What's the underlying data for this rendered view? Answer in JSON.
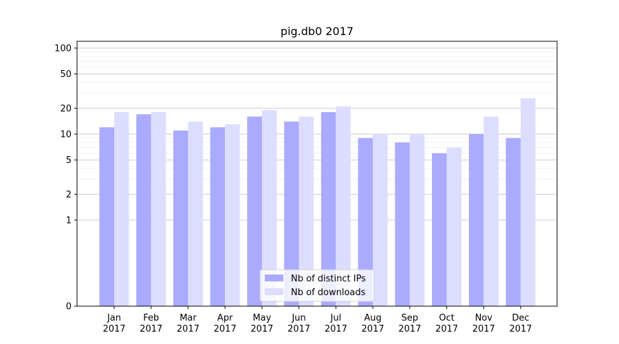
{
  "chart_data": {
    "type": "bar",
    "title": "pig.db0 2017",
    "xlabel": "",
    "ylabel": "",
    "y_scale": "symlog",
    "ylim": [
      0,
      120
    ],
    "y_ticks": [
      0,
      1,
      2,
      5,
      10,
      20,
      50,
      100
    ],
    "y_tick_labels": [
      "0",
      "1",
      "2",
      "5",
      "10",
      "20",
      "50",
      "100"
    ],
    "grid": true,
    "legend_position": "bottom-center",
    "categories": [
      [
        "Jan",
        "2017"
      ],
      [
        "Feb",
        "2017"
      ],
      [
        "Mar",
        "2017"
      ],
      [
        "Apr",
        "2017"
      ],
      [
        "May",
        "2017"
      ],
      [
        "Jun",
        "2017"
      ],
      [
        "Jul",
        "2017"
      ],
      [
        "Aug",
        "2017"
      ],
      [
        "Sep",
        "2017"
      ],
      [
        "Oct",
        "2017"
      ],
      [
        "Nov",
        "2017"
      ],
      [
        "Dec",
        "2017"
      ]
    ],
    "series": [
      {
        "name": "Nb of distinct IPs",
        "color": "#aaaaff",
        "values": [
          12,
          17,
          11,
          12,
          16,
          14,
          18,
          9,
          8,
          6,
          10,
          9
        ]
      },
      {
        "name": "Nb of downloads",
        "color": "#ddddff",
        "values": [
          18,
          18,
          14,
          13,
          19,
          16,
          21,
          10,
          10,
          7,
          16,
          26
        ]
      }
    ]
  }
}
